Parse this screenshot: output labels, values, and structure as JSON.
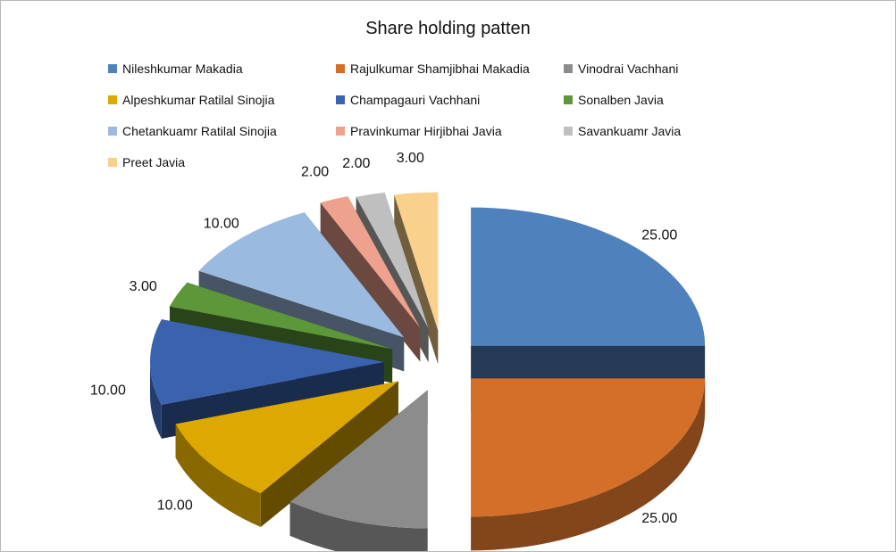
{
  "chart_data": {
    "type": "pie",
    "title": "Share holding patten",
    "legend_position": "top",
    "exploded": true,
    "style": "3d",
    "slices": [
      {
        "label": "Nileshkumar  Makadia",
        "value": 25.0,
        "value_label": "25.00",
        "color": "#4F81BD"
      },
      {
        "label": "Rajulkumar  Shamjibhai  Makadia",
        "value": 25.0,
        "value_label": "25.00",
        "color": "#D46F2A"
      },
      {
        "label": "Vinodrai  Vachhani",
        "value": 10.0,
        "value_label": "10.00",
        "color": "#8C8C8C"
      },
      {
        "label": "Alpeshkumar  Ratilal  Sinojia",
        "value": 10.0,
        "value_label": "10.00",
        "color": "#DDA800"
      },
      {
        "label": "Champagauri  Vachhani",
        "value": 10.0,
        "value_label": "10.00",
        "color": "#3A62AE"
      },
      {
        "label": "Sonalben  Javia",
        "value": 3.0,
        "value_label": "3.00",
        "color": "#5E963A"
      },
      {
        "label": "Chetankuamr  Ratilal  Sinojia",
        "value": 10.0,
        "value_label": "10.00",
        "color": "#9BBAE0"
      },
      {
        "label": "Pravinkumar  Hirjibhai  Javia",
        "value": 2.0,
        "value_label": "2.00",
        "color": "#EEA28E"
      },
      {
        "label": "Savankuamr  Javia",
        "value": 2.0,
        "value_label": "2.00",
        "color": "#BFBFBF"
      },
      {
        "label": "Preet  Javia",
        "value": 3.0,
        "value_label": "3.00",
        "color": "#F9D08C"
      }
    ]
  }
}
